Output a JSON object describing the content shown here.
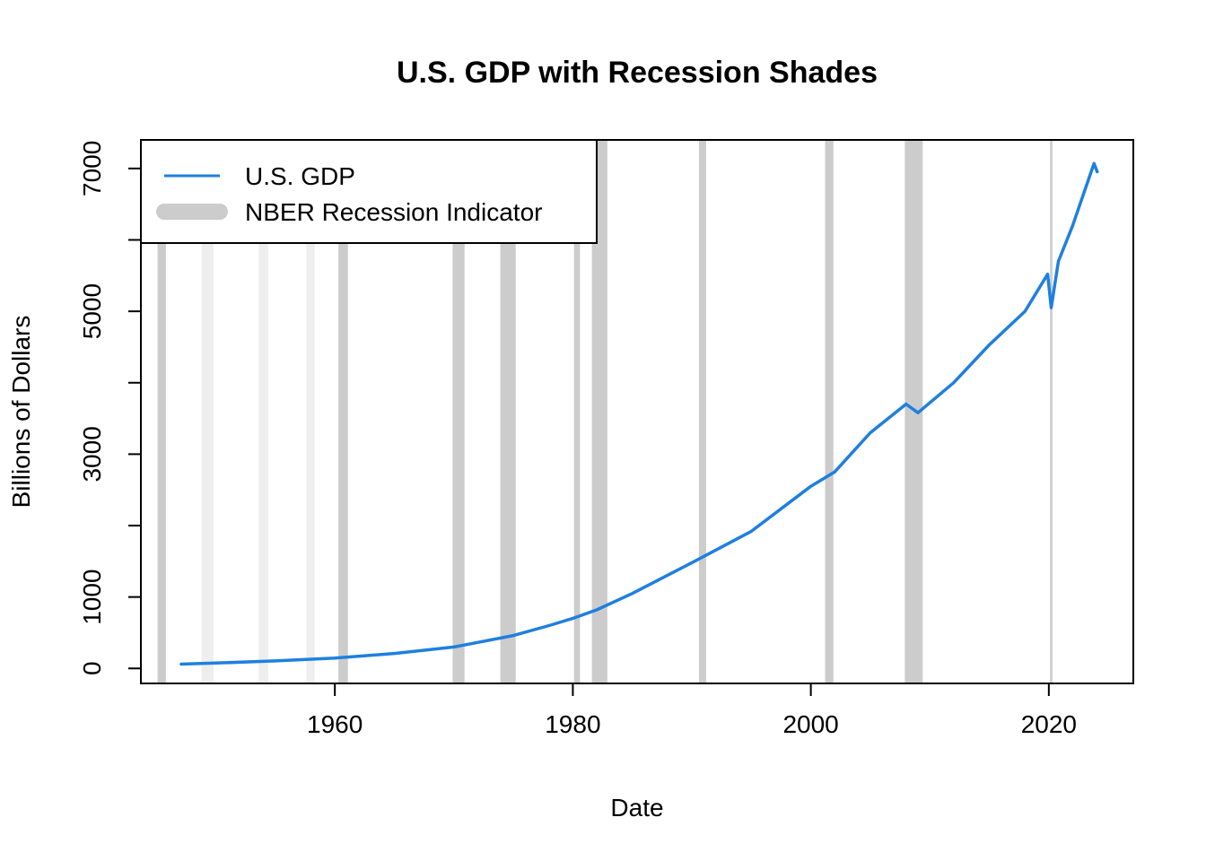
{
  "chart_data": {
    "type": "line",
    "title": "U.S. GDP with Recession Shades",
    "xlabel": "Date",
    "ylabel": "Billions of Dollars",
    "xlim": [
      1943.7,
      2027.1
    ],
    "ylim": [
      -210,
      7400
    ],
    "x_ticks": [
      1960,
      1980,
      2000,
      2020
    ],
    "y_ticks": [
      0,
      1000,
      3000,
      5000,
      7000
    ],
    "y_minor_ticks": [
      2000,
      4000,
      6000
    ],
    "grid": false,
    "colors": {
      "gdp_line": "#1f7fe0",
      "recession_shade": "#cccccc",
      "recession_shade_light": "#eeeeee",
      "frame": "#000000"
    },
    "legend": {
      "position": "top-left",
      "entries": [
        {
          "label": "U.S. GDP",
          "style": "line",
          "color": "#1f7fe0"
        },
        {
          "label": "NBER Recession Indicator",
          "style": "thick-bar",
          "color": "#cccccc"
        }
      ]
    },
    "recessions": [
      {
        "start": 1945.1,
        "end": 1945.8,
        "shade": "dark"
      },
      {
        "start": 1948.8,
        "end": 1949.8,
        "shade": "light"
      },
      {
        "start": 1953.6,
        "end": 1954.4,
        "shade": "light"
      },
      {
        "start": 1957.6,
        "end": 1958.3,
        "shade": "light"
      },
      {
        "start": 1960.3,
        "end": 1961.1,
        "shade": "dark"
      },
      {
        "start": 1969.9,
        "end": 1970.9,
        "shade": "dark"
      },
      {
        "start": 1973.9,
        "end": 1975.2,
        "shade": "dark"
      },
      {
        "start": 1980.1,
        "end": 1980.6,
        "shade": "dark"
      },
      {
        "start": 1981.6,
        "end": 1982.9,
        "shade": "dark"
      },
      {
        "start": 1990.6,
        "end": 1991.2,
        "shade": "dark"
      },
      {
        "start": 2001.2,
        "end": 2001.9,
        "shade": "dark"
      },
      {
        "start": 2007.9,
        "end": 2009.4,
        "shade": "dark"
      },
      {
        "start": 2020.1,
        "end": 2020.3,
        "shade": "dark"
      }
    ],
    "series": [
      {
        "name": "U.S. GDP",
        "x": [
          1947,
          1950,
          1955,
          1960,
          1965,
          1970,
          1975,
          1978,
          1980,
          1982,
          1985,
          1990,
          1995,
          2000,
          2002,
          2005,
          2008,
          2009,
          2012,
          2015,
          2018,
          2019.9,
          2020.2,
          2020.8,
          2022,
          2023.8,
          2024.1
        ],
        "y": [
          60,
          75,
          105,
          145,
          210,
          300,
          460,
          600,
          700,
          820,
          1050,
          1480,
          1920,
          2550,
          2750,
          3300,
          3700,
          3580,
          4000,
          4530,
          5000,
          5520,
          5050,
          5700,
          6200,
          7070,
          6940
        ]
      }
    ]
  }
}
